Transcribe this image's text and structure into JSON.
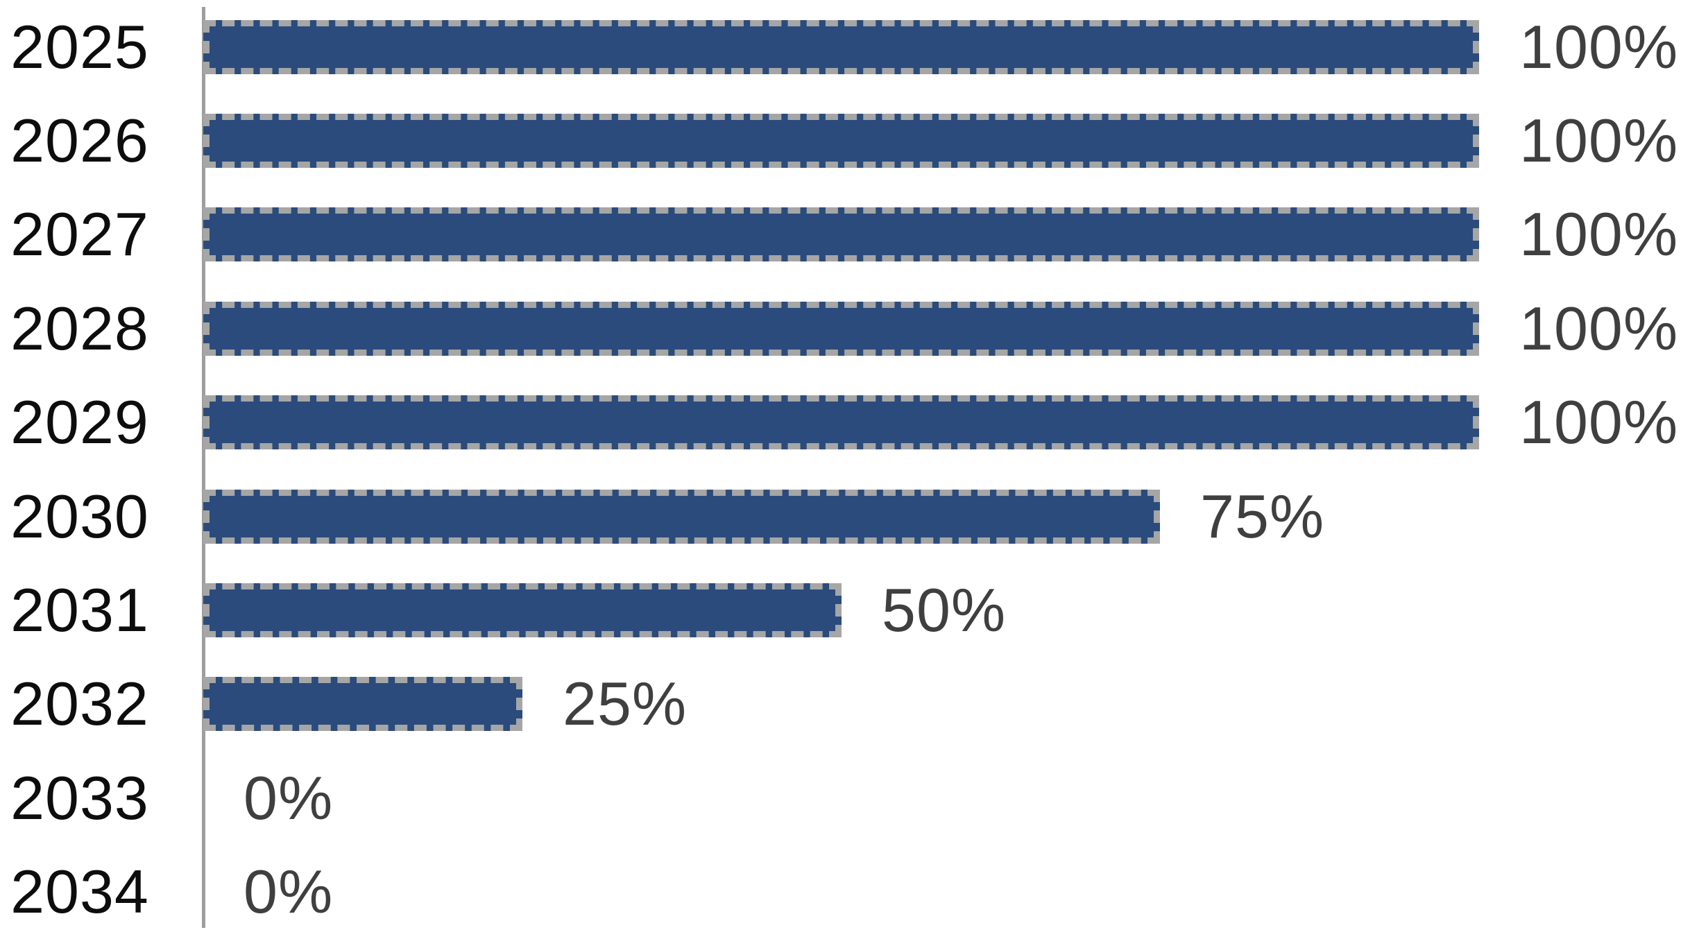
{
  "chart_data": {
    "type": "bar",
    "orientation": "horizontal",
    "title": "",
    "xlabel": "",
    "ylabel": "",
    "categories": [
      "2025",
      "2026",
      "2027",
      "2028",
      "2029",
      "2030",
      "2031",
      "2032",
      "2033",
      "2034"
    ],
    "values": [
      100,
      100,
      100,
      100,
      100,
      75,
      50,
      25,
      0,
      0
    ],
    "value_labels": [
      "100%",
      "100%",
      "100%",
      "100%",
      "100%",
      "75%",
      "50%",
      "25%",
      "0%",
      "0%"
    ],
    "xlim": [
      0,
      100
    ],
    "grid": false,
    "legend": null,
    "colors": {
      "bar_fill": "#2a4b7c",
      "bar_border": "#a6a6a6",
      "axis_line": "#9e9e9e",
      "year_label": "#0d0d0d",
      "value_label": "#3f3f3f",
      "background": "#ffffff"
    },
    "bar_border_style": "dashed"
  }
}
